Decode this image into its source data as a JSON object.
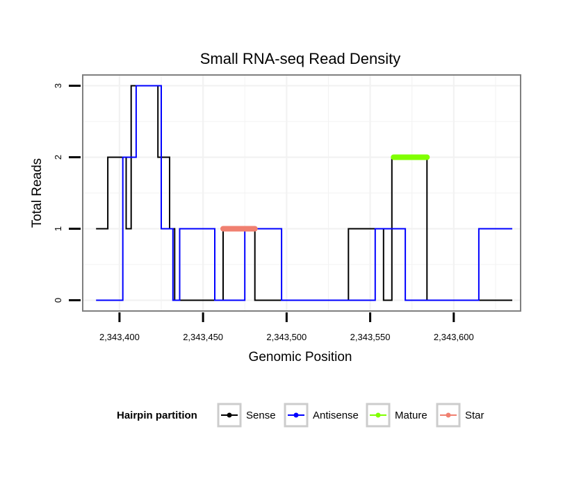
{
  "chart_data": {
    "type": "line",
    "title": "Small RNA-seq Read Density",
    "xlabel": "Genomic Position",
    "ylabel": "Total Reads",
    "xlim": [
      2343378,
      2343640
    ],
    "ylim": [
      -0.15,
      3.15
    ],
    "x_ticks": [
      2343400,
      2343450,
      2343500,
      2343550,
      2343600
    ],
    "x_tick_labels": [
      "2,343,400",
      "2,343,450",
      "2,343,500",
      "2,343,550",
      "2,343,600"
    ],
    "y_ticks": [
      0,
      1,
      2,
      3
    ],
    "y_tick_labels": [
      "0",
      "1",
      "2",
      "3"
    ],
    "grid": true,
    "legend": {
      "title": "Hairpin partition",
      "position": "bottom",
      "entries": [
        "Sense",
        "Antisense",
        "Mature",
        "Star"
      ]
    },
    "series": [
      {
        "name": "Sense",
        "color": "#000000",
        "style": "step",
        "points": [
          [
            2343386,
            1
          ],
          [
            2343393,
            1
          ],
          [
            2343393,
            2
          ],
          [
            2343404,
            2
          ],
          [
            2343404,
            1
          ],
          [
            2343407,
            1
          ],
          [
            2343407,
            3
          ],
          [
            2343423,
            3
          ],
          [
            2343423,
            2
          ],
          [
            2343430,
            2
          ],
          [
            2343430,
            1
          ],
          [
            2343433,
            1
          ],
          [
            2343433,
            0
          ],
          [
            2343462,
            0
          ],
          [
            2343462,
            1
          ],
          [
            2343481,
            1
          ],
          [
            2343481,
            0
          ],
          [
            2343537,
            0
          ],
          [
            2343537,
            1
          ],
          [
            2343558,
            1
          ],
          [
            2343558,
            0
          ],
          [
            2343563,
            0
          ],
          [
            2343563,
            2
          ],
          [
            2343584,
            2
          ],
          [
            2343584,
            0
          ],
          [
            2343635,
            0
          ]
        ]
      },
      {
        "name": "Antisense",
        "color": "#0000ff",
        "style": "step",
        "points": [
          [
            2343386,
            0
          ],
          [
            2343402,
            0
          ],
          [
            2343402,
            2
          ],
          [
            2343410,
            2
          ],
          [
            2343410,
            3
          ],
          [
            2343425,
            3
          ],
          [
            2343425,
            1
          ],
          [
            2343432,
            1
          ],
          [
            2343432,
            0
          ],
          [
            2343436,
            0
          ],
          [
            2343436,
            1
          ],
          [
            2343457,
            1
          ],
          [
            2343457,
            0
          ],
          [
            2343475,
            0
          ],
          [
            2343475,
            1
          ],
          [
            2343497,
            1
          ],
          [
            2343497,
            0
          ],
          [
            2343553,
            0
          ],
          [
            2343553,
            1
          ],
          [
            2343571,
            1
          ],
          [
            2343571,
            0
          ],
          [
            2343615,
            0
          ],
          [
            2343615,
            1
          ],
          [
            2343635,
            1
          ]
        ]
      },
      {
        "name": "Mature",
        "color": "#80ff00",
        "style": "segment",
        "points": [
          [
            2343564,
            2
          ],
          [
            2343584,
            2
          ]
        ]
      },
      {
        "name": "Star",
        "color": "#f08070",
        "style": "segment",
        "points": [
          [
            2343462,
            1
          ],
          [
            2343481,
            1
          ]
        ]
      }
    ]
  }
}
